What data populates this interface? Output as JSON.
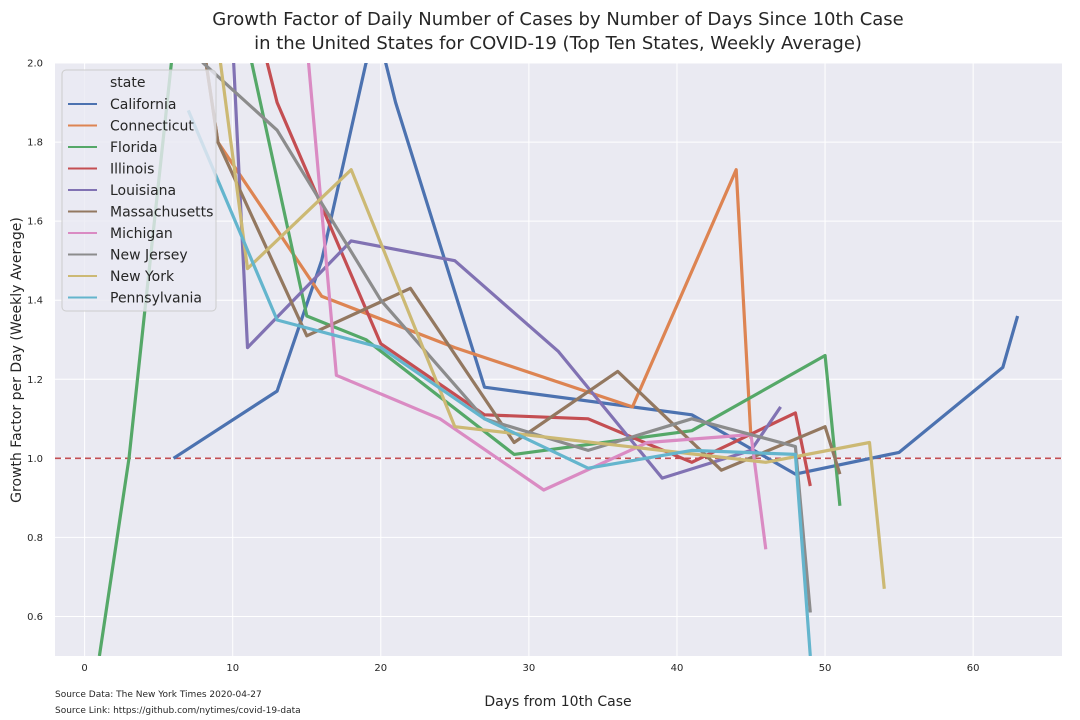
{
  "chart_data": {
    "type": "line",
    "title": "Growth Factor of Daily Number of Cases by Number of Days Since 10th Case",
    "subtitle": "in the United States for COVID-19 (Top Ten States, Weekly Average)",
    "xlabel": "Days from 10th Case",
    "ylabel": "Growth Factor per Day (Weekly Average)",
    "xlim": [
      -2,
      66
    ],
    "ylim": [
      0.5,
      2.0
    ],
    "xticks": [
      0,
      10,
      20,
      30,
      40,
      50,
      60
    ],
    "yticks": [
      0.6,
      0.8,
      1.0,
      1.2,
      1.4,
      1.6,
      1.8,
      2.0
    ],
    "xtick_labels": [
      "0",
      "10",
      "20",
      "30",
      "40",
      "50",
      "60"
    ],
    "ytick_labels": [
      "0.6",
      "0.8",
      "1.0",
      "1.2",
      "1.4",
      "1.6",
      "1.8",
      "2.0"
    ],
    "grid": true,
    "legend_title": "state",
    "legend_position": "upper-left",
    "reference_line": {
      "y": 1.0,
      "color": "#c44e52",
      "style": "dashed"
    },
    "series": [
      {
        "name": "California",
        "color": "#4c72b0",
        "points": [
          [
            6,
            1.0
          ],
          [
            13,
            1.17
          ],
          [
            16,
            1.5
          ],
          [
            19,
            2.0
          ],
          [
            20,
            2.05
          ],
          [
            21,
            1.9
          ],
          [
            27,
            1.18
          ],
          [
            41,
            1.11
          ],
          [
            48,
            0.96
          ],
          [
            55,
            1.015
          ],
          [
            62,
            1.23
          ],
          [
            63,
            1.36
          ]
        ]
      },
      {
        "name": "Connecticut",
        "color": "#dd8452",
        "points": [
          [
            8,
            2.05
          ],
          [
            9,
            1.8
          ],
          [
            16,
            1.41
          ],
          [
            25,
            1.28
          ],
          [
            37,
            1.13
          ],
          [
            44,
            1.73
          ],
          [
            45,
            1.05
          ]
        ]
      },
      {
        "name": "Florida",
        "color": "#55a868",
        "points": [
          [
            1,
            0.5
          ],
          [
            3,
            1.0
          ],
          [
            6,
            2.05
          ],
          [
            11,
            2.05
          ],
          [
            15,
            1.36
          ],
          [
            19,
            1.3
          ],
          [
            29,
            1.01
          ],
          [
            41,
            1.07
          ],
          [
            50,
            1.26
          ],
          [
            51,
            0.88
          ]
        ]
      },
      {
        "name": "Illinois",
        "color": "#c44e52",
        "points": [
          [
            12,
            2.05
          ],
          [
            13,
            1.9
          ],
          [
            20,
            1.29
          ],
          [
            27,
            1.11
          ],
          [
            34,
            1.1
          ],
          [
            41,
            0.99
          ],
          [
            48,
            1.115
          ],
          [
            49,
            0.93
          ]
        ]
      },
      {
        "name": "Louisiana",
        "color": "#8172b3",
        "points": [
          [
            10,
            2.05
          ],
          [
            11,
            1.28
          ],
          [
            18,
            1.55
          ],
          [
            25,
            1.5
          ],
          [
            32,
            1.27
          ],
          [
            39,
            0.95
          ],
          [
            45,
            1.02
          ],
          [
            47,
            1.13
          ]
        ]
      },
      {
        "name": "Massachusetts",
        "color": "#937860",
        "points": [
          [
            8,
            2.05
          ],
          [
            9,
            1.8
          ],
          [
            15,
            1.31
          ],
          [
            22,
            1.43
          ],
          [
            29,
            1.04
          ],
          [
            36,
            1.22
          ],
          [
            43,
            0.97
          ],
          [
            50,
            1.08
          ],
          [
            51,
            0.96
          ]
        ]
      },
      {
        "name": "Michigan",
        "color": "#da8bc3",
        "points": [
          [
            15,
            2.05
          ],
          [
            17,
            1.21
          ],
          [
            24,
            1.1
          ],
          [
            31,
            0.92
          ],
          [
            38,
            1.04
          ],
          [
            45,
            1.06
          ],
          [
            46,
            0.77
          ]
        ]
      },
      {
        "name": "New Jersey",
        "color": "#8c8c8c",
        "points": [
          [
            7.5,
            2.05
          ],
          [
            8,
            2.0
          ],
          [
            13,
            1.83
          ],
          [
            20,
            1.4
          ],
          [
            27,
            1.1
          ],
          [
            34,
            1.02
          ],
          [
            41,
            1.1
          ],
          [
            48,
            1.03
          ],
          [
            49,
            0.61
          ]
        ]
      },
      {
        "name": "New York",
        "color": "#ccb974",
        "points": [
          [
            9,
            2.05
          ],
          [
            11,
            1.48
          ],
          [
            18,
            1.73
          ],
          [
            25,
            1.08
          ],
          [
            46,
            0.99
          ],
          [
            53,
            1.04
          ],
          [
            54,
            0.67
          ]
        ]
      },
      {
        "name": "Pennsylvania",
        "color": "#64b5cd",
        "points": [
          [
            7,
            1.88
          ],
          [
            13,
            1.35
          ],
          [
            20,
            1.28
          ],
          [
            27,
            1.1
          ],
          [
            34,
            0.975
          ],
          [
            41,
            1.02
          ],
          [
            48,
            1.01
          ],
          [
            49,
            0.5
          ]
        ]
      }
    ]
  },
  "footer": {
    "source_data": "Source Data: The New York Times 2020-04-27",
    "source_link": "Source Link: https://github.com/nytimes/covid-19-data"
  }
}
